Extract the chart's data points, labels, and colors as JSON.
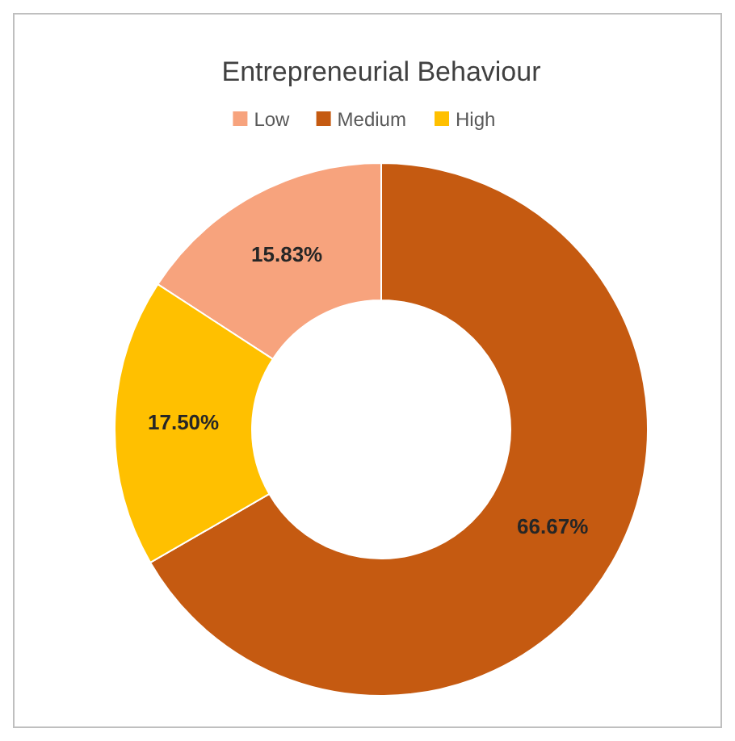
{
  "chart_data": {
    "type": "donut",
    "title": "Entrepreneurial Behaviour",
    "categories": [
      "Low",
      "Medium",
      "High"
    ],
    "values": [
      15.83,
      66.67,
      17.5
    ],
    "value_labels": [
      "15.83%",
      "66.67%",
      "17.50%"
    ],
    "colors": [
      "#f7a37d",
      "#c55a11",
      "#ffc000"
    ],
    "legend": "top"
  }
}
